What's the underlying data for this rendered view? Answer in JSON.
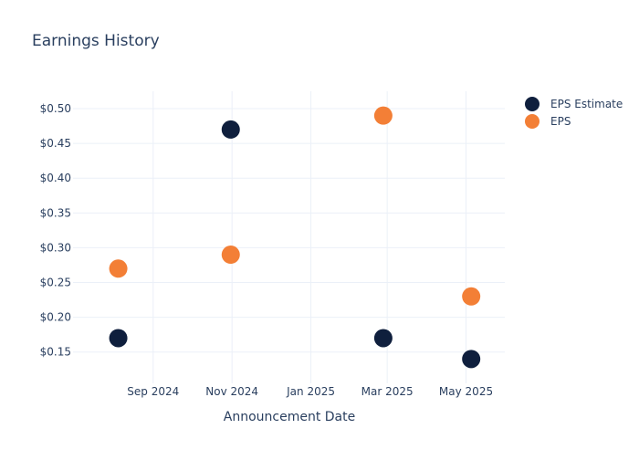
{
  "chart_data": {
    "type": "scatter",
    "title": "Earnings History",
    "xlabel": "Announcement Date",
    "ylabel": "",
    "x_axis_type": "date",
    "xlim": [
      "2024-07-01",
      "2025-05-31"
    ],
    "ylim": [
      0.105,
      0.525
    ],
    "grid": true,
    "legend_position": "top-right",
    "x_ticks": [
      {
        "date": "2024-09-01",
        "label": "Sep 2024"
      },
      {
        "date": "2024-11-01",
        "label": "Nov 2024"
      },
      {
        "date": "2025-01-01",
        "label": "Jan 2025"
      },
      {
        "date": "2025-03-01",
        "label": "Mar 2025"
      },
      {
        "date": "2025-05-01",
        "label": "May 2025"
      }
    ],
    "y_ticks": [
      {
        "value": 0.15,
        "label": "$0.15"
      },
      {
        "value": 0.2,
        "label": "$0.20"
      },
      {
        "value": 0.25,
        "label": "$0.25"
      },
      {
        "value": 0.3,
        "label": "$0.30"
      },
      {
        "value": 0.35,
        "label": "$0.35"
      },
      {
        "value": 0.4,
        "label": "$0.40"
      },
      {
        "value": 0.45,
        "label": "$0.45"
      },
      {
        "value": 0.5,
        "label": "$0.50"
      }
    ],
    "series": [
      {
        "name": "EPS Estimate",
        "color": "#0f1f3d",
        "x": [
          "2024-08-05",
          "2024-10-31",
          "2025-02-26",
          "2025-05-05"
        ],
        "y": [
          0.17,
          0.47,
          0.17,
          0.14
        ]
      },
      {
        "name": "EPS",
        "color": "#f37f36",
        "x": [
          "2024-08-05",
          "2024-10-31",
          "2025-02-26",
          "2025-05-05"
        ],
        "y": [
          0.27,
          0.29,
          0.49,
          0.23
        ]
      }
    ]
  }
}
